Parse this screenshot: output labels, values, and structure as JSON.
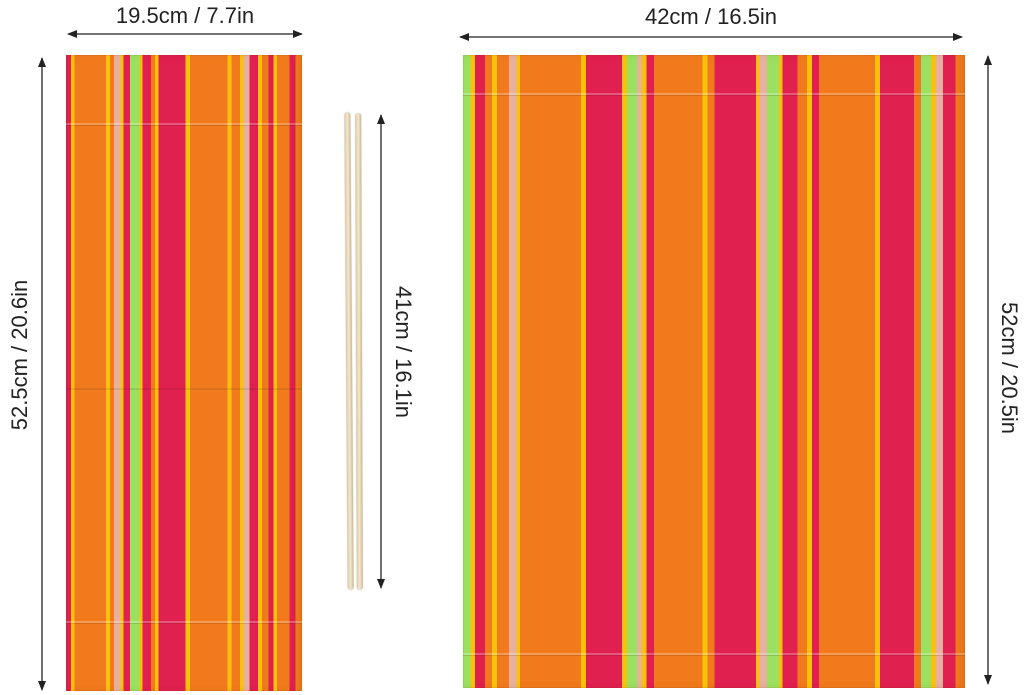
{
  "dimensions": {
    "small_panel_width": "19.5cm / 7.7in",
    "small_panel_height": "52.5cm / 20.6in",
    "rod_length": "41cm / 16.1in",
    "large_panel_width": "42cm / 16.5in",
    "large_panel_height": "52cm / 20.5in"
  },
  "colors": {
    "orange": "#f07a1c",
    "red": "#e0204e",
    "yellow": "#f8c20c",
    "green": "#9be060",
    "tan": "#e8b0a0",
    "rod": "#ead9b6",
    "dimension_line": "#222222"
  }
}
